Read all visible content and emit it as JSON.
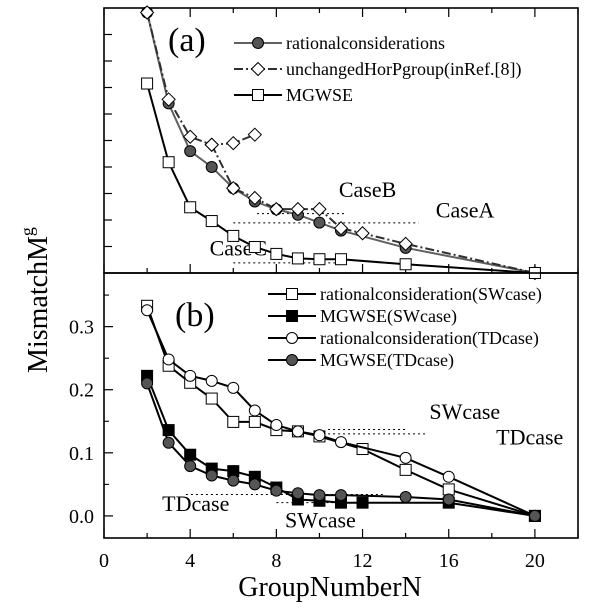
{
  "page": {
    "x_axis_label": "GroupNumberN",
    "y_axis_label_main": "MismatchM",
    "y_axis_label_sub": "g"
  },
  "chart_data": [
    {
      "type": "line",
      "panel_label": "(a)",
      "x_range": [
        0,
        22
      ],
      "y_range": [
        0,
        1
      ],
      "y_tick_labels": false,
      "grid": false,
      "legend_position": "top-right",
      "series": [
        {
          "name": "rationalconsiderations",
          "color": "#606060",
          "line_style": "solid",
          "marker": "filled-circle",
          "x": [
            2,
            3,
            4,
            5,
            6,
            7,
            8,
            9,
            10,
            11,
            14,
            20
          ],
          "y": [
            0.983,
            0.64,
            0.46,
            0.4,
            0.32,
            0.27,
            0.24,
            0.22,
            0.19,
            0.16,
            0.095,
            0.0
          ]
        },
        {
          "name": "unchangedHorPgroup(inRef.[8])",
          "color": "#303030",
          "line_style": "dashdot",
          "marker": "open-diamond",
          "segments": [
            {
              "x": [
                2,
                3,
                4,
                5,
                6,
                7
              ],
              "y": [
                0.983,
                0.655,
                0.514,
                0.484,
                0.49,
                0.522
              ]
            },
            {
              "x": [
                5,
                6,
                7,
                8,
                9,
                10,
                11,
                12,
                14,
                20
              ],
              "y": [
                0.484,
                0.32,
                0.283,
                0.241,
                0.241,
                0.241,
                0.169,
                0.15,
                0.11,
                0.0
              ]
            }
          ]
        },
        {
          "name": "MGWSE",
          "color": "#000000",
          "line_style": "solid",
          "marker": "open-square",
          "x": [
            2,
            3,
            4,
            5,
            6,
            7,
            8,
            9,
            10,
            11,
            14,
            20
          ],
          "y": [
            0.715,
            0.418,
            0.248,
            0.196,
            0.14,
            0.098,
            0.072,
            0.055,
            0.052,
            0.052,
            0.033,
            0.0
          ]
        }
      ],
      "annotations": [
        {
          "text": "CaseB",
          "x": 10.9,
          "y": 0.286,
          "line_x": [
            7.1,
            11.2
          ],
          "line_y": [
            0.224,
            0.224
          ]
        },
        {
          "text": "CaseA",
          "x": 15.4,
          "y": 0.21,
          "line_x": [
            6.0,
            14.6
          ],
          "line_y": [
            0.189,
            0.189
          ]
        },
        {
          "text": "CaseC",
          "x": 4.9,
          "y": 0.066,
          "line_x": [
            6.0,
            11.0
          ],
          "line_y": [
            0.038,
            0.038
          ]
        }
      ]
    },
    {
      "type": "line",
      "panel_label": "(b)",
      "x_range": [
        0,
        22
      ],
      "y_range": [
        -0.035,
        0.385
      ],
      "y_ticks": [
        0.0,
        0.1,
        0.2,
        0.3
      ],
      "y_tick_labels": [
        "0.0",
        "0.1",
        "0.2",
        "0.3"
      ],
      "x_ticks": [
        0,
        4,
        8,
        12,
        16,
        20
      ],
      "x_tick_labels": [
        "0",
        "4",
        "8",
        "12",
        "16",
        "20"
      ],
      "grid": false,
      "legend_position": "top-right",
      "series": [
        {
          "name": "rationalconsideration(SWcase)",
          "color": "#000000",
          "line_style": "solid",
          "marker": "open-square",
          "x": [
            2,
            3,
            4,
            5,
            6,
            7,
            8,
            9,
            10,
            12,
            14,
            16,
            20
          ],
          "y": [
            0.333,
            0.238,
            0.211,
            0.186,
            0.149,
            0.149,
            0.136,
            0.134,
            0.126,
            0.106,
            0.073,
            0.042,
            0.0
          ]
        },
        {
          "name": "MGWSE(SWcase)",
          "color": "#000000",
          "line_style": "solid",
          "marker": "filled-square",
          "x": [
            2,
            3,
            4,
            5,
            6,
            7,
            8,
            9,
            10,
            11,
            12,
            16,
            20
          ],
          "y": [
            0.222,
            0.136,
            0.097,
            0.075,
            0.071,
            0.062,
            0.045,
            0.026,
            0.024,
            0.021,
            0.021,
            0.021,
            0.0
          ]
        },
        {
          "name": "rationalconsideration(TDcase)",
          "color": "#000000",
          "line_style": "solid",
          "marker": "open-circle",
          "x": [
            2,
            3,
            4,
            5,
            6,
            7,
            8,
            9,
            10,
            11,
            14,
            16,
            20
          ],
          "y": [
            0.326,
            0.248,
            0.222,
            0.214,
            0.203,
            0.167,
            0.144,
            0.134,
            0.128,
            0.117,
            0.092,
            0.062,
            0.0
          ]
        },
        {
          "name": "MGWSE(TDcase)",
          "color": "#000000",
          "line_style": "solid",
          "marker": "filled-circle",
          "x": [
            2,
            3,
            4,
            5,
            6,
            7,
            8,
            9,
            10,
            11,
            14,
            16,
            20
          ],
          "y": [
            0.21,
            0.116,
            0.079,
            0.064,
            0.056,
            0.05,
            0.04,
            0.036,
            0.033,
            0.033,
            0.03,
            0.026,
            0.0
          ]
        }
      ],
      "annotations": [
        {
          "text": "SWcase",
          "x": 15.1,
          "y": 0.154,
          "line_x": [
            10.4,
            14.0
          ],
          "line_y": [
            0.137,
            0.137
          ]
        },
        {
          "text": "TDcase",
          "x": 18.2,
          "y": 0.113,
          "line_x": [
            10.4,
            15.0
          ],
          "line_y": [
            0.13,
            0.13
          ]
        },
        {
          "text": "TDcase",
          "x": 2.7,
          "y": 0.008,
          "line_x": [
            3.8,
            13.0
          ],
          "line_y": [
            0.034,
            0.034
          ]
        },
        {
          "text": "SWcase",
          "x": 8.4,
          "y": -0.018,
          "line_x": [
            8.0,
            12.0
          ],
          "line_y": [
            0.021,
            0.021
          ]
        }
      ]
    }
  ]
}
